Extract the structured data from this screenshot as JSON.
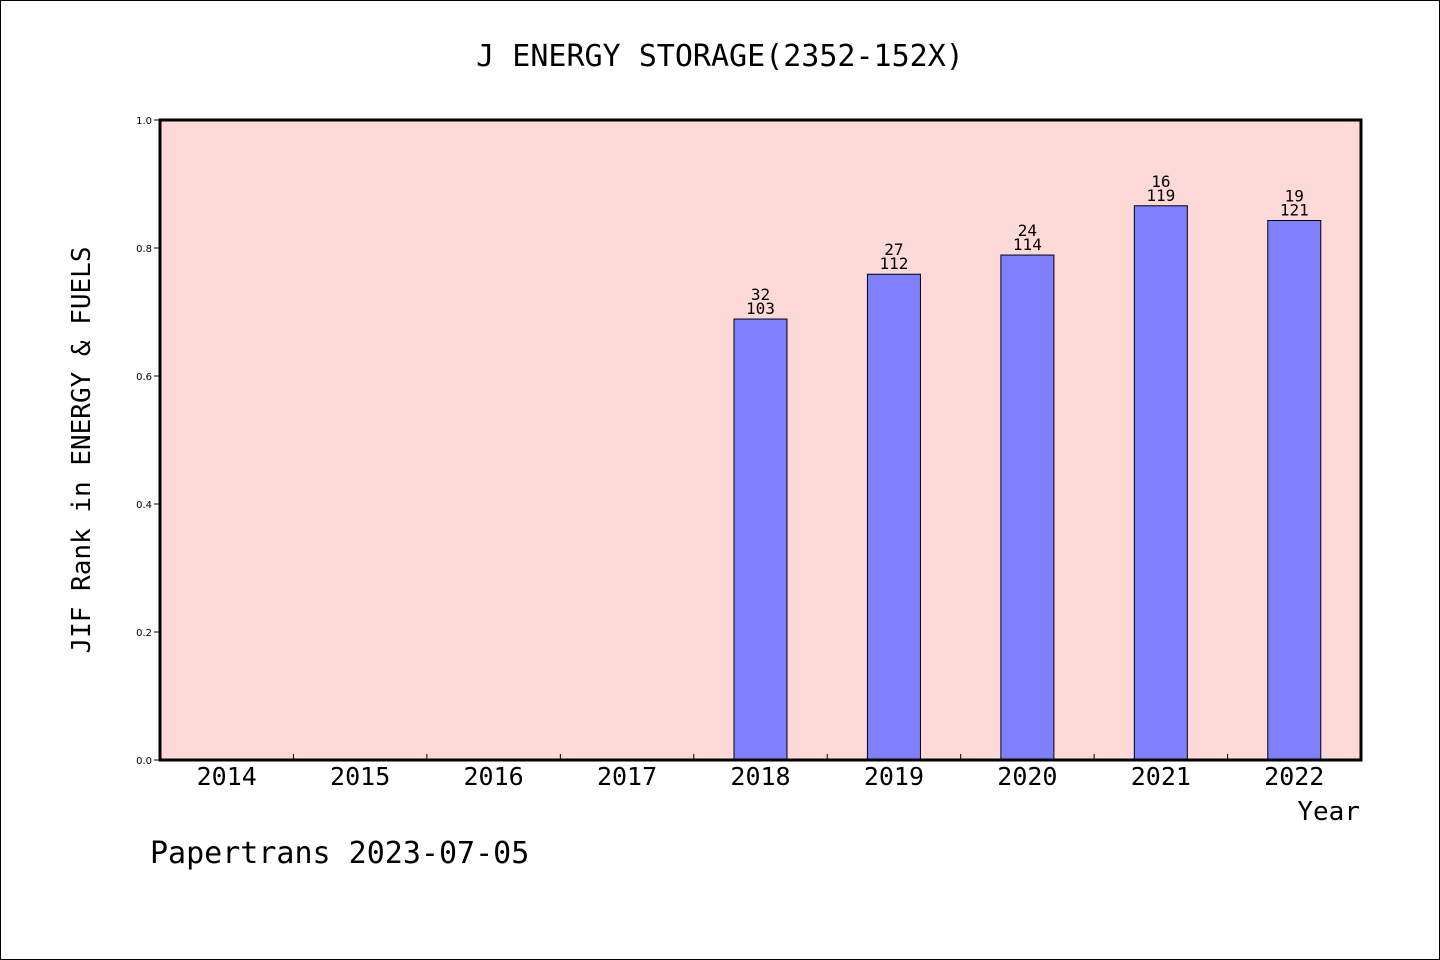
{
  "chart_data": {
    "type": "bar",
    "title": "J ENERGY STORAGE(2352-152X)",
    "xlabel": "Year",
    "ylabel": "JIF Rank in ENERGY & FUELS",
    "ylim": [
      0,
      1.0
    ],
    "yticks": [
      "0.0",
      "0.2",
      "0.4",
      "0.6",
      "0.8",
      "1.0"
    ],
    "categories": [
      "2014",
      "2015",
      "2016",
      "2017",
      "2018",
      "2019",
      "2020",
      "2021",
      "2022"
    ],
    "values": [
      null,
      null,
      null,
      null,
      0.689,
      0.759,
      0.789,
      0.866,
      0.843
    ],
    "rank_labels": [
      null,
      null,
      null,
      null,
      "32",
      "27",
      "24",
      "16",
      "19"
    ],
    "total_labels": [
      null,
      null,
      null,
      null,
      "103",
      "112",
      "114",
      "119",
      "121"
    ],
    "colors": {
      "plot_background": "#FDDAD7",
      "bar_fill": "#8080FF",
      "bar_stroke": "#000000"
    },
    "grid": false
  },
  "footer": {
    "text": "Papertrans 2023-07-05"
  }
}
